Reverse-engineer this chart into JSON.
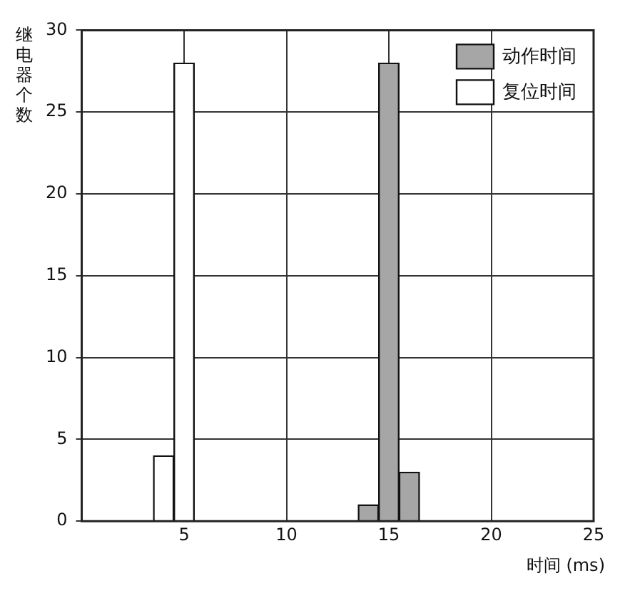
{
  "chart_data": {
    "type": "bar",
    "xlabel": "时间 (ms)",
    "ylabel": "继电器个数",
    "series": [
      {
        "name": "动作时间",
        "color": "#a6a6a6",
        "x": [
          14,
          15,
          16
        ],
        "values": [
          1,
          28,
          3
        ]
      },
      {
        "name": "复位时间",
        "color": "#ffffff",
        "x": [
          4,
          5
        ],
        "values": [
          4,
          28
        ]
      }
    ],
    "xlim": [
      0,
      25
    ],
    "xticks": [
      5,
      10,
      15,
      20,
      25
    ],
    "ylim": [
      0,
      30
    ],
    "yticks": [
      0,
      5,
      10,
      15,
      20,
      25,
      30
    ],
    "grid": true,
    "legend": "top right"
  }
}
